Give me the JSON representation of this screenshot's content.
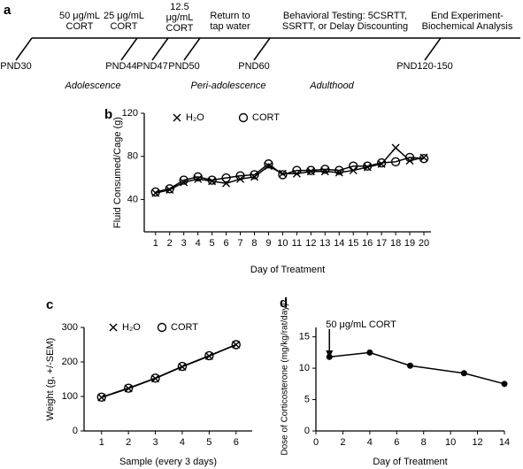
{
  "timeline": {
    "panel_label": "a",
    "treatments": [
      [
        "50 μg/mL",
        "CORT"
      ],
      [
        "25 μg/mL",
        "CORT"
      ],
      [
        "12.5",
        "μg/mL",
        "CORT"
      ],
      [
        "Return to",
        "tap water"
      ],
      [
        "Behavioral Testing: 5CSRTT,",
        "SSRTT, or Delay Discounting"
      ],
      [
        "End Experiment-",
        "Biochemical Analysis"
      ]
    ],
    "ages": [
      "PND30",
      "PND44",
      "PND47",
      "PND50",
      "PND60",
      "PND120-150"
    ],
    "periods": [
      "Adolescence",
      "Peri-adolescence",
      "Adulthood"
    ]
  },
  "chart_data": [
    {
      "type": "line",
      "panel_label": "b",
      "xlabel": "Day of Treatment",
      "ylabel": "Fluid Consumed/Cage (g)",
      "x": [
        1,
        2,
        3,
        4,
        5,
        6,
        7,
        8,
        9,
        10,
        11,
        12,
        13,
        14,
        15,
        16,
        17,
        18,
        19,
        20
      ],
      "xlim": [
        0.2,
        20.5
      ],
      "xticks": [
        1,
        2,
        3,
        4,
        5,
        6,
        7,
        8,
        9,
        10,
        11,
        12,
        13,
        14,
        15,
        16,
        17,
        18,
        19,
        20
      ],
      "ylim": [
        10,
        120
      ],
      "yticks": [
        40,
        80,
        120
      ],
      "legend": "top-left",
      "series": [
        {
          "name": "H₂O",
          "color": "#000000",
          "marker": "x",
          "values": [
            46,
            49,
            56,
            59,
            57,
            55,
            59,
            61,
            71,
            64,
            64,
            66,
            66,
            65,
            67,
            70,
            73,
            88,
            76,
            79
          ]
        },
        {
          "name": "CORT",
          "color": "#000000",
          "marker": "o",
          "values": [
            47,
            50,
            58,
            61,
            58,
            60,
            62,
            63,
            73,
            63,
            67,
            67,
            68,
            67,
            71,
            71,
            74,
            75,
            79,
            78
          ]
        }
      ]
    },
    {
      "type": "line",
      "panel_label": "c",
      "xlabel": "Sample (every 3 days)",
      "ylabel": "Weight (g, +/-SEM)",
      "x": [
        1,
        2,
        3,
        4,
        5,
        6
      ],
      "xlim": [
        0.35,
        6.6
      ],
      "xticks": [
        1,
        2,
        3,
        4,
        5,
        6
      ],
      "ylim": [
        0,
        300
      ],
      "yticks": [
        0,
        100,
        200,
        300
      ],
      "legend": "top-left",
      "series": [
        {
          "name": "H₂O",
          "color": "#000000",
          "marker": "x",
          "values": [
            97,
            123,
            152,
            186,
            217,
            250
          ]
        },
        {
          "name": "CORT",
          "color": "#000000",
          "marker": "o",
          "values": [
            98,
            124,
            153,
            187,
            218,
            250
          ]
        }
      ]
    },
    {
      "type": "line",
      "panel_label": "d",
      "xlabel": "Day of Treatment",
      "ylabel": "Dose of Corticosterone (mg/kg/rat/day)",
      "x": [
        1,
        4,
        7,
        11,
        14
      ],
      "xlim": [
        0,
        14
      ],
      "xticks": [
        0,
        2,
        4,
        6,
        8,
        10,
        12,
        14
      ],
      "ylim": [
        0,
        16.5
      ],
      "yticks": [
        0,
        5,
        10,
        15
      ],
      "annotation": "50 μg/mL CORT",
      "annotation_x": 1,
      "series": [
        {
          "color": "#000000",
          "marker": "dot",
          "values": [
            11.8,
            12.5,
            10.4,
            9.2,
            7.5
          ]
        }
      ]
    }
  ]
}
